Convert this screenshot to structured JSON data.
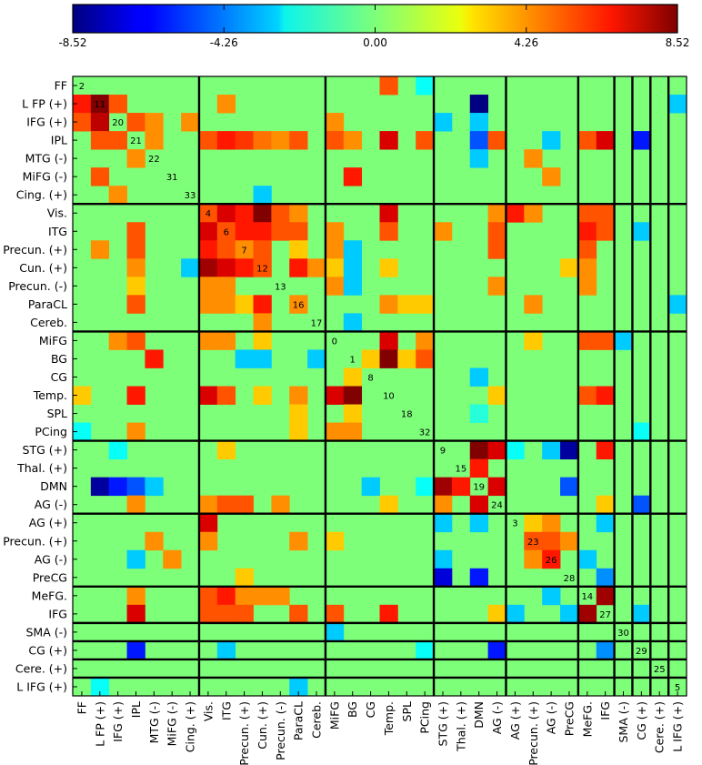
{
  "chart_data": {
    "type": "heatmap",
    "title": "",
    "colorbar": {
      "colormap": "jet",
      "range": [
        -8.52,
        8.52
      ],
      "tick_values": [
        -8.52,
        -4.26,
        0.0,
        4.26,
        8.52
      ],
      "tick_labels": [
        "-8.52",
        "-4.26",
        "0.00",
        "4.26",
        "8.52"
      ],
      "position": "top"
    },
    "labels": [
      "FF",
      "L FP (+)",
      "IFG (+)",
      "IPL",
      "MTG (-)",
      "MiFG (-)",
      "Cing. (+)",
      "Vis.",
      "ITG",
      "Precun. (+)",
      "Cun. (+)",
      "Precun. (-)",
      "ParaCL",
      "Cereb.",
      "MiFG",
      "BG",
      "CG",
      "Temp.",
      "SPL",
      "PCing",
      "STG (+)",
      "Thal. (+)",
      "DMN",
      "AG (-)",
      "AG (+)",
      "Precun. (+)",
      "AG (-)",
      "PreCG",
      "MeFG.",
      "IFG",
      "SMA (-)",
      "CG (+)",
      "Cere. (+)",
      "L IFG (+)"
    ],
    "group_boundaries": [
      7,
      14,
      20,
      24,
      28,
      30,
      31,
      32,
      33
    ],
    "diagonal_labels": [
      {
        "index": 0,
        "text": "2"
      },
      {
        "index": 1,
        "text": "11"
      },
      {
        "index": 2,
        "text": "20"
      },
      {
        "index": 3,
        "text": "21"
      },
      {
        "index": 4,
        "text": "22"
      },
      {
        "index": 5,
        "text": "31"
      },
      {
        "index": 6,
        "text": "33"
      },
      {
        "index": 7,
        "text": "4"
      },
      {
        "index": 8,
        "text": "6"
      },
      {
        "index": 9,
        "text": "7"
      },
      {
        "index": 10,
        "text": "12"
      },
      {
        "index": 11,
        "text": "13"
      },
      {
        "index": 12,
        "text": "16"
      },
      {
        "index": 13,
        "text": "17"
      },
      {
        "index": 14,
        "text": "0"
      },
      {
        "index": 15,
        "text": "1"
      },
      {
        "index": 16,
        "text": "8"
      },
      {
        "index": 17,
        "text": "10"
      },
      {
        "index": 18,
        "text": "18"
      },
      {
        "index": 19,
        "text": "32"
      },
      {
        "index": 20,
        "text": "9"
      },
      {
        "index": 21,
        "text": "15"
      },
      {
        "index": 22,
        "text": "19"
      },
      {
        "index": 23,
        "text": "24"
      },
      {
        "index": 24,
        "text": "3"
      },
      {
        "index": 25,
        "text": "23"
      },
      {
        "index": 26,
        "text": "26"
      },
      {
        "index": 27,
        "text": "28"
      },
      {
        "index": 28,
        "text": "14"
      },
      {
        "index": 29,
        "text": "27"
      },
      {
        "index": 30,
        "text": "30"
      },
      {
        "index": 31,
        "text": "29"
      },
      {
        "index": 32,
        "text": "25"
      },
      {
        "index": 33,
        "text": "5"
      }
    ],
    "cells": [
      [
        0,
        17,
        5
      ],
      [
        0,
        19,
        -2
      ],
      [
        1,
        0,
        6
      ],
      [
        1,
        1,
        8.5
      ],
      [
        1,
        2,
        5
      ],
      [
        1,
        8,
        4
      ],
      [
        1,
        22,
        -8.5
      ],
      [
        1,
        33,
        -3
      ],
      [
        2,
        0,
        5
      ],
      [
        2,
        1,
        7.5
      ],
      [
        2,
        3,
        5
      ],
      [
        2,
        4,
        4
      ],
      [
        2,
        6,
        4
      ],
      [
        2,
        14,
        4
      ],
      [
        2,
        20,
        -3
      ],
      [
        2,
        22,
        -3
      ],
      [
        3,
        1,
        5
      ],
      [
        3,
        2,
        5
      ],
      [
        3,
        4,
        4
      ],
      [
        3,
        7,
        5
      ],
      [
        3,
        8,
        6
      ],
      [
        3,
        9,
        5.5
      ],
      [
        3,
        10,
        4.5
      ],
      [
        3,
        11,
        4
      ],
      [
        3,
        12,
        5
      ],
      [
        3,
        14,
        5
      ],
      [
        3,
        15,
        4
      ],
      [
        3,
        17,
        7
      ],
      [
        3,
        19,
        5
      ],
      [
        3,
        22,
        -5
      ],
      [
        3,
        23,
        5
      ],
      [
        3,
        26,
        -3
      ],
      [
        3,
        28,
        5
      ],
      [
        3,
        29,
        7
      ],
      [
        3,
        31,
        -6
      ],
      [
        4,
        3,
        4
      ],
      [
        4,
        22,
        -3
      ],
      [
        4,
        25,
        4
      ],
      [
        5,
        1,
        5
      ],
      [
        5,
        15,
        6
      ],
      [
        5,
        26,
        4
      ],
      [
        6,
        2,
        4
      ],
      [
        6,
        10,
        -3
      ],
      [
        7,
        7,
        5
      ],
      [
        7,
        8,
        7
      ],
      [
        7,
        9,
        6
      ],
      [
        7,
        10,
        8.5
      ],
      [
        7,
        11,
        5
      ],
      [
        7,
        12,
        4
      ],
      [
        7,
        17,
        7
      ],
      [
        7,
        23,
        4
      ],
      [
        7,
        24,
        6
      ],
      [
        7,
        25,
        4
      ],
      [
        7,
        28,
        5
      ],
      [
        7,
        29,
        5
      ],
      [
        8,
        3,
        5
      ],
      [
        8,
        7,
        7
      ],
      [
        8,
        8,
        5
      ],
      [
        8,
        9,
        6
      ],
      [
        8,
        10,
        6
      ],
      [
        8,
        11,
        5
      ],
      [
        8,
        12,
        5
      ],
      [
        8,
        14,
        4
      ],
      [
        8,
        17,
        5
      ],
      [
        8,
        20,
        4
      ],
      [
        8,
        23,
        5
      ],
      [
        8,
        28,
        6
      ],
      [
        8,
        29,
        5
      ],
      [
        8,
        31,
        -3
      ],
      [
        9,
        1,
        4
      ],
      [
        9,
        3,
        5
      ],
      [
        9,
        7,
        6
      ],
      [
        9,
        8,
        5
      ],
      [
        9,
        9,
        4
      ],
      [
        9,
        10,
        5
      ],
      [
        9,
        12,
        3
      ],
      [
        9,
        14,
        4
      ],
      [
        9,
        15,
        -3
      ],
      [
        9,
        23,
        5
      ],
      [
        9,
        28,
        5
      ],
      [
        10,
        3,
        4
      ],
      [
        10,
        6,
        -3
      ],
      [
        10,
        7,
        8
      ],
      [
        10,
        8,
        7
      ],
      [
        10,
        9,
        6
      ],
      [
        10,
        10,
        5
      ],
      [
        10,
        12,
        6
      ],
      [
        10,
        13,
        4
      ],
      [
        10,
        14,
        3
      ],
      [
        10,
        15,
        -3
      ],
      [
        10,
        17,
        3
      ],
      [
        10,
        27,
        3
      ],
      [
        10,
        28,
        4
      ],
      [
        11,
        3,
        3
      ],
      [
        11,
        7,
        4
      ],
      [
        11,
        8,
        4
      ],
      [
        11,
        14,
        4
      ],
      [
        11,
        15,
        -3
      ],
      [
        11,
        23,
        4
      ],
      [
        11,
        28,
        4
      ],
      [
        12,
        3,
        5
      ],
      [
        12,
        7,
        4
      ],
      [
        12,
        8,
        4
      ],
      [
        12,
        9,
        3
      ],
      [
        12,
        10,
        6
      ],
      [
        12,
        12,
        4
      ],
      [
        12,
        17,
        4
      ],
      [
        12,
        18,
        3
      ],
      [
        12,
        19,
        3
      ],
      [
        12,
        25,
        4
      ],
      [
        12,
        33,
        -3
      ],
      [
        13,
        10,
        4
      ],
      [
        13,
        15,
        -3
      ],
      [
        14,
        2,
        4
      ],
      [
        14,
        3,
        5
      ],
      [
        14,
        7,
        4
      ],
      [
        14,
        8,
        4
      ],
      [
        14,
        10,
        3
      ],
      [
        14,
        17,
        7
      ],
      [
        14,
        19,
        4
      ],
      [
        14,
        25,
        3
      ],
      [
        14,
        28,
        5
      ],
      [
        14,
        29,
        5
      ],
      [
        14,
        30,
        -3
      ],
      [
        15,
        4,
        6
      ],
      [
        15,
        9,
        -3
      ],
      [
        15,
        10,
        -3
      ],
      [
        15,
        13,
        -3
      ],
      [
        15,
        16,
        3
      ],
      [
        15,
        17,
        8.5
      ],
      [
        15,
        18,
        3
      ],
      [
        15,
        19,
        5
      ],
      [
        16,
        15,
        3
      ],
      [
        16,
        22,
        -3
      ],
      [
        17,
        0,
        3
      ],
      [
        17,
        3,
        6
      ],
      [
        17,
        7,
        7
      ],
      [
        17,
        8,
        5
      ],
      [
        17,
        10,
        3
      ],
      [
        17,
        12,
        4
      ],
      [
        17,
        14,
        7
      ],
      [
        17,
        15,
        8.5
      ],
      [
        17,
        23,
        3
      ],
      [
        17,
        28,
        5
      ],
      [
        17,
        29,
        6
      ],
      [
        18,
        12,
        3
      ],
      [
        18,
        15,
        3
      ],
      [
        18,
        22,
        -1.5
      ],
      [
        19,
        0,
        -2
      ],
      [
        19,
        3,
        4
      ],
      [
        19,
        12,
        3
      ],
      [
        19,
        14,
        4
      ],
      [
        19,
        15,
        4
      ],
      [
        19,
        31,
        -2
      ],
      [
        20,
        2,
        -2
      ],
      [
        20,
        8,
        3
      ],
      [
        20,
        22,
        8.5
      ],
      [
        20,
        23,
        7
      ],
      [
        20,
        24,
        -2
      ],
      [
        20,
        26,
        -3
      ],
      [
        20,
        27,
        -8
      ],
      [
        20,
        29,
        6
      ],
      [
        21,
        22,
        6
      ],
      [
        22,
        1,
        -8
      ],
      [
        22,
        2,
        -6
      ],
      [
        22,
        3,
        -5
      ],
      [
        22,
        4,
        -3
      ],
      [
        22,
        16,
        -3
      ],
      [
        22,
        19,
        -2
      ],
      [
        22,
        20,
        8
      ],
      [
        22,
        21,
        6
      ],
      [
        22,
        23,
        7
      ],
      [
        22,
        27,
        -5
      ],
      [
        23,
        3,
        4
      ],
      [
        23,
        7,
        4
      ],
      [
        23,
        8,
        5
      ],
      [
        23,
        9,
        5
      ],
      [
        23,
        11,
        4
      ],
      [
        23,
        17,
        3
      ],
      [
        23,
        20,
        4
      ],
      [
        23,
        22,
        7
      ],
      [
        23,
        29,
        3
      ],
      [
        23,
        31,
        -5
      ],
      [
        24,
        7,
        7
      ],
      [
        24,
        20,
        -3
      ],
      [
        24,
        22,
        -3
      ],
      [
        24,
        25,
        3
      ],
      [
        24,
        26,
        4
      ],
      [
        24,
        29,
        -3
      ],
      [
        25,
        4,
        4
      ],
      [
        25,
        7,
        4
      ],
      [
        25,
        12,
        4
      ],
      [
        25,
        14,
        3
      ],
      [
        25,
        25,
        5
      ],
      [
        25,
        26,
        5
      ],
      [
        25,
        27,
        4
      ],
      [
        26,
        3,
        -3
      ],
      [
        26,
        5,
        4
      ],
      [
        26,
        20,
        -3
      ],
      [
        26,
        25,
        4
      ],
      [
        26,
        26,
        6
      ],
      [
        26,
        28,
        -3
      ],
      [
        27,
        9,
        3
      ],
      [
        27,
        20,
        -7
      ],
      [
        27,
        22,
        -6
      ],
      [
        27,
        29,
        -4
      ],
      [
        28,
        3,
        4
      ],
      [
        28,
        7,
        5
      ],
      [
        28,
        8,
        6
      ],
      [
        28,
        9,
        4
      ],
      [
        28,
        10,
        4
      ],
      [
        28,
        11,
        4
      ],
      [
        28,
        26,
        -3
      ],
      [
        28,
        29,
        8
      ],
      [
        29,
        3,
        7
      ],
      [
        29,
        7,
        5
      ],
      [
        29,
        8,
        5
      ],
      [
        29,
        9,
        5
      ],
      [
        29,
        12,
        5
      ],
      [
        29,
        14,
        5
      ],
      [
        29,
        17,
        6
      ],
      [
        29,
        23,
        3
      ],
      [
        29,
        24,
        -3
      ],
      [
        29,
        27,
        -3
      ],
      [
        29,
        28,
        8
      ],
      [
        29,
        31,
        -3
      ],
      [
        30,
        14,
        -3
      ],
      [
        31,
        3,
        -6
      ],
      [
        31,
        8,
        -3
      ],
      [
        31,
        19,
        -2
      ],
      [
        31,
        23,
        -6
      ],
      [
        31,
        29,
        -4
      ],
      [
        33,
        1,
        -2
      ],
      [
        33,
        12,
        -3
      ]
    ]
  }
}
